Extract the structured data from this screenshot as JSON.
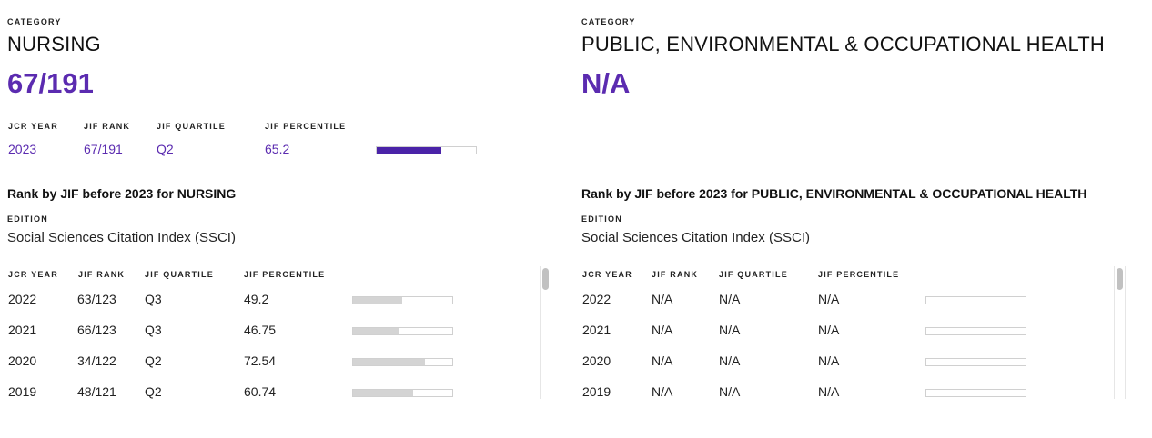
{
  "left": {
    "category_label": "CATEGORY",
    "category_name": "NURSING",
    "rank": "67/191",
    "current_headers": {
      "year": "JCR YEAR",
      "rank": "JIF RANK",
      "quartile": "JIF QUARTILE",
      "percentile": "JIF PERCENTILE"
    },
    "current": {
      "year": "2023",
      "rank": "67/191",
      "quartile": "Q2",
      "percentile": "65.2",
      "percentile_value": 65.2
    },
    "history_title": "Rank by JIF before 2023 for NURSING",
    "edition_label": "EDITION",
    "edition_value": "Social Sciences Citation Index (SSCI)",
    "history_headers": {
      "year": "JCR YEAR",
      "rank": "JIF RANK",
      "quartile": "JIF QUARTILE",
      "percentile": "JIF PERCENTILE"
    },
    "history": [
      {
        "year": "2022",
        "rank": "63/123",
        "quartile": "Q3",
        "percentile": "49.2",
        "percentile_value": 49.2
      },
      {
        "year": "2021",
        "rank": "66/123",
        "quartile": "Q3",
        "percentile": "46.75",
        "percentile_value": 46.75
      },
      {
        "year": "2020",
        "rank": "34/122",
        "quartile": "Q2",
        "percentile": "72.54",
        "percentile_value": 72.54
      },
      {
        "year": "2019",
        "rank": "48/121",
        "quartile": "Q2",
        "percentile": "60.74",
        "percentile_value": 60.74
      }
    ]
  },
  "right": {
    "category_label": "CATEGORY",
    "category_name": "PUBLIC, ENVIRONMENTAL & OCCUPATIONAL HEALTH",
    "rank": "N/A",
    "history_title": "Rank by JIF before 2023 for PUBLIC, ENVIRONMENTAL & OCCUPATIONAL HEALTH",
    "edition_label": "EDITION",
    "edition_value": "Social Sciences Citation Index (SSCI)",
    "history_headers": {
      "year": "JCR YEAR",
      "rank": "JIF RANK",
      "quartile": "JIF QUARTILE",
      "percentile": "JIF PERCENTILE"
    },
    "history": [
      {
        "year": "2022",
        "rank": "N/A",
        "quartile": "N/A",
        "percentile": "N/A",
        "percentile_value": 0
      },
      {
        "year": "2021",
        "rank": "N/A",
        "quartile": "N/A",
        "percentile": "N/A",
        "percentile_value": 0
      },
      {
        "year": "2020",
        "rank": "N/A",
        "quartile": "N/A",
        "percentile": "N/A",
        "percentile_value": 0
      },
      {
        "year": "2019",
        "rank": "N/A",
        "quartile": "N/A",
        "percentile": "N/A",
        "percentile_value": 0
      }
    ]
  },
  "colors": {
    "accent": "#5b2bb0",
    "bar_current": "#4a23a8",
    "bar_history": "#d4d4d4"
  }
}
